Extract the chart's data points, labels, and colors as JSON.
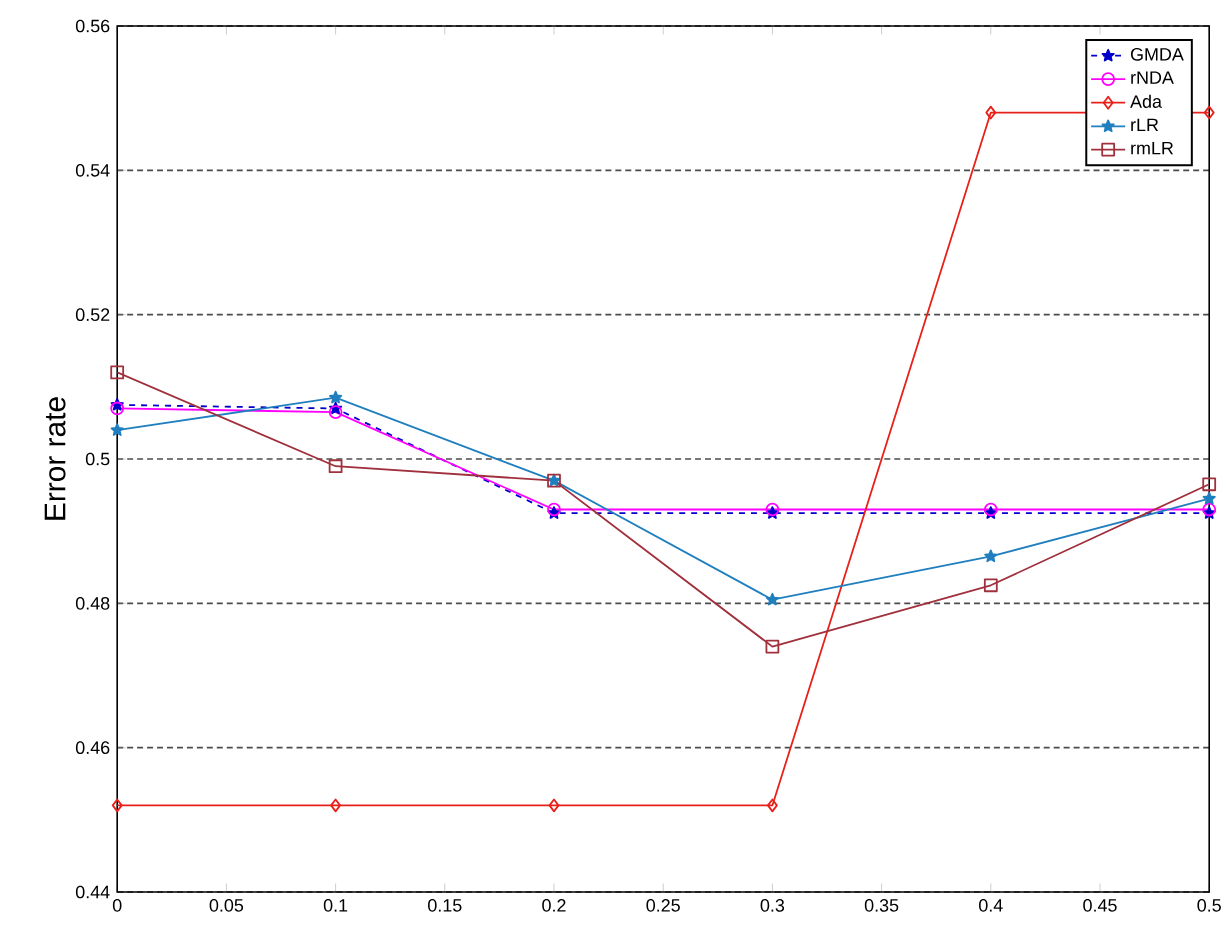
{
  "chart_data": {
    "type": "line",
    "ylabel": "Error rate",
    "x": [
      0,
      0.1,
      0.2,
      0.3,
      0.4,
      0.5
    ],
    "xlim": [
      0,
      0.5
    ],
    "xticks": [
      0,
      0.05,
      0.1,
      0.15,
      0.2,
      0.25,
      0.3,
      0.35,
      0.4,
      0.45,
      0.5
    ],
    "ylim": [
      0.44,
      0.56
    ],
    "yticks": [
      0.44,
      0.46,
      0.48,
      0.5,
      0.52,
      0.54,
      0.56
    ],
    "grid": "y",
    "legend": "top right",
    "series": [
      {
        "name": "GMDA",
        "color": "#0000cc",
        "marker": "star",
        "line_style": "dashed",
        "values": [
          0.5075,
          0.507,
          0.4925,
          0.4925,
          0.4925,
          0.4925
        ]
      },
      {
        "name": "rNDA",
        "color": "#ff00ff",
        "marker": "circle",
        "line_style": "solid",
        "values": [
          0.507,
          0.5065,
          0.493,
          0.493,
          0.493,
          0.493
        ]
      },
      {
        "name": "Ada",
        "color": "#e8201a",
        "marker": "diamond",
        "line_style": "solid",
        "values": [
          0.452,
          0.452,
          0.452,
          0.452,
          0.548,
          0.548
        ]
      },
      {
        "name": "rLR",
        "color": "#1f7fbf",
        "marker": "star",
        "line_style": "solid",
        "values": [
          0.504,
          0.5085,
          0.497,
          0.4805,
          0.4865,
          0.4945
        ]
      },
      {
        "name": "rmLR",
        "color": "#a0303c",
        "marker": "square",
        "line_style": "solid",
        "values": [
          0.512,
          0.499,
          0.497,
          0.474,
          0.4825,
          0.4965
        ]
      }
    ]
  }
}
